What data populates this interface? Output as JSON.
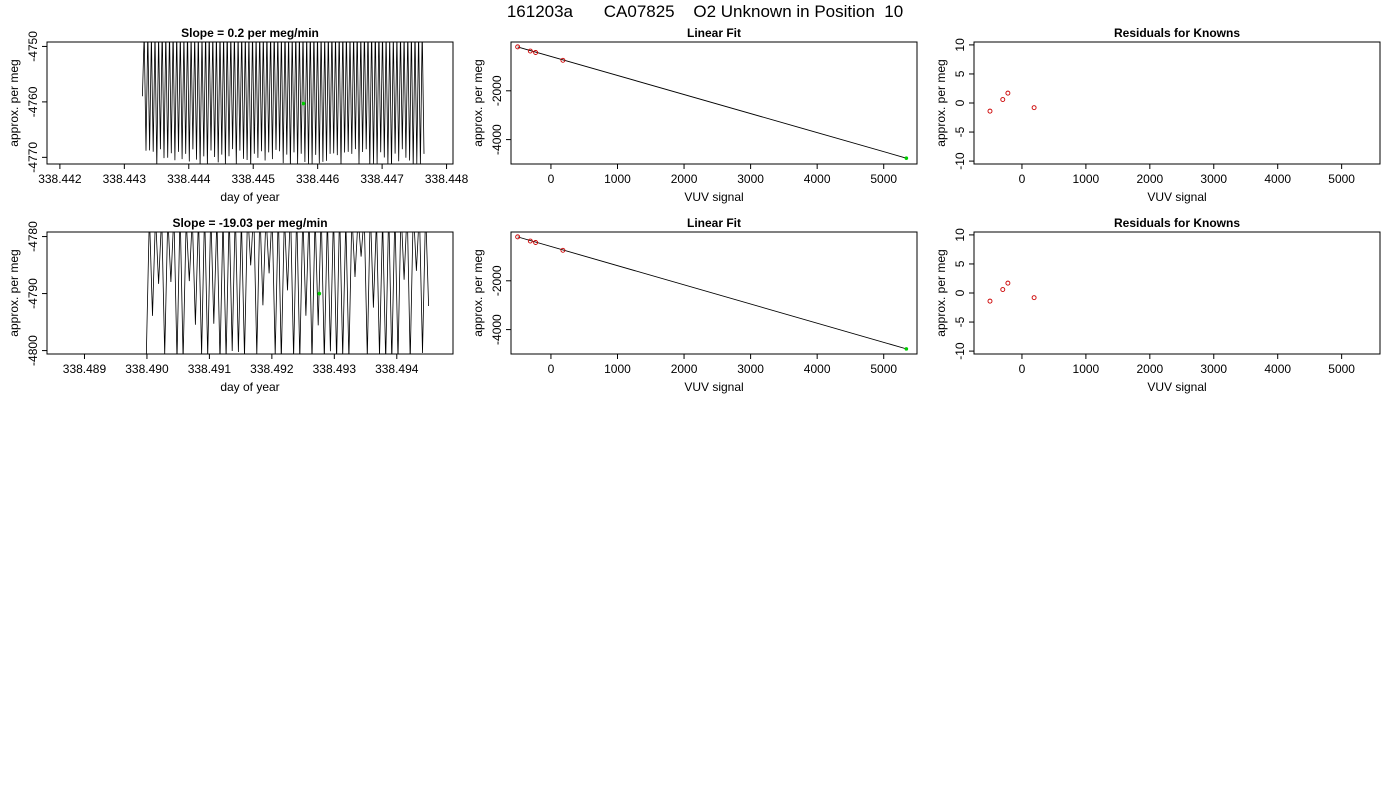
{
  "header": {
    "run_id": "161203a",
    "cylinder": "CA07825",
    "description": "O2 Unknown in Position  10"
  },
  "colors": {
    "line": "#000000",
    "known": "#cc0000",
    "unknown": "#00cc00",
    "frame": "#000000"
  },
  "chart_data": [
    {
      "id": "ts1",
      "type": "line",
      "title": "Slope =  0.2  per meg/min",
      "xlabel": "day of year",
      "ylabel": "approx. per meg",
      "xlim": [
        338.4418,
        338.4481
      ],
      "ylim": [
        -4771.2,
        -4749.2
      ],
      "xticks": [
        338.442,
        338.443,
        338.444,
        338.445,
        338.446,
        338.447,
        338.448
      ],
      "xtick_labels": [
        "338.442",
        "338.443",
        "338.444",
        "338.445",
        "338.446",
        "338.447",
        "338.448"
      ],
      "yticks": [
        -4750,
        -4760,
        -4770
      ],
      "ytick_labels": [
        "-4750",
        "-4760",
        "-4770"
      ],
      "signal": {
        "kind": "oscillation",
        "x_start": 338.44328,
        "x_end": 338.44765,
        "cycles": 78,
        "seed": 7,
        "y_low": -4772,
        "y_high": -4748,
        "first_y": -4759
      },
      "marker": {
        "x": 338.44578,
        "y": -4760.3
      }
    },
    {
      "id": "fit1",
      "type": "scatter",
      "title": "Linear Fit",
      "xlabel": "VUV signal",
      "ylabel": "approx. per meg",
      "xlim": [
        -600,
        5500
      ],
      "ylim": [
        -5000,
        0
      ],
      "xticks": [
        0,
        1000,
        2000,
        3000,
        4000,
        5000
      ],
      "xtick_labels": [
        "0",
        "1000",
        "2000",
        "3000",
        "4000",
        "5000"
      ],
      "yticks": [
        -2000,
        -4000
      ],
      "ytick_labels": [
        "-2000",
        "-4000"
      ],
      "fit_line": [
        [
          -500,
          -200
        ],
        [
          5340,
          -4760
        ]
      ],
      "knowns": [
        [
          -500,
          -200
        ],
        [
          -310,
          -370
        ],
        [
          -230,
          -430
        ],
        [
          180,
          -750
        ]
      ],
      "unknown": [
        5340,
        -4760
      ]
    },
    {
      "id": "res1",
      "type": "scatter",
      "title": "Residuals for Knowns",
      "xlabel": "VUV signal",
      "ylabel": "approx. per meg",
      "xlim": [
        -750,
        5600
      ],
      "ylim": [
        -10.5,
        10.5
      ],
      "xticks": [
        0,
        1000,
        2000,
        3000,
        4000,
        5000
      ],
      "xtick_labels": [
        "0",
        "1000",
        "2000",
        "3000",
        "4000",
        "5000"
      ],
      "yticks": [
        10,
        5,
        0,
        -5,
        -10
      ],
      "ytick_labels": [
        "10",
        "5",
        "0",
        "-5",
        "-10"
      ],
      "points": [
        [
          -500,
          -1.4
        ],
        [
          -300,
          0.6
        ],
        [
          -220,
          1.7
        ],
        [
          190,
          -0.8
        ]
      ]
    },
    {
      "id": "ts2",
      "type": "line",
      "title": "Slope =  -19.03  per meg/min",
      "xlabel": "day of year",
      "ylabel": "approx. per meg",
      "xlim": [
        338.4884,
        338.4949
      ],
      "ylim": [
        -4800.6,
        -4779.2
      ],
      "xticks": [
        338.489,
        338.49,
        338.491,
        338.492,
        338.493,
        338.494
      ],
      "xtick_labels": [
        "338.489",
        "338.490",
        "338.491",
        "338.492",
        "338.493",
        "338.494"
      ],
      "yticks": [
        -4780,
        -4790,
        -4800
      ],
      "ytick_labels": [
        "-4780",
        "-4790",
        "-4800"
      ],
      "signal": {
        "kind": "spikes",
        "x_start": 338.48999,
        "x_end": 338.49451,
        "cycles": 46,
        "seed": 13,
        "y_low": -4802,
        "y_high": -4777,
        "first_y": -4801
      },
      "marker": {
        "x": 338.49276,
        "y": -4790
      }
    },
    {
      "id": "fit2",
      "type": "scatter",
      "title": "Linear Fit",
      "xlabel": "VUV signal",
      "ylabel": "approx. per meg",
      "xlim": [
        -600,
        5500
      ],
      "ylim": [
        -5000,
        0
      ],
      "xticks": [
        0,
        1000,
        2000,
        3000,
        4000,
        5000
      ],
      "xtick_labels": [
        "0",
        "1000",
        "2000",
        "3000",
        "4000",
        "5000"
      ],
      "yticks": [
        -2000,
        -4000
      ],
      "ytick_labels": [
        "-2000",
        "-4000"
      ],
      "fit_line": [
        [
          -500,
          -200
        ],
        [
          5340,
          -4790
        ]
      ],
      "knowns": [
        [
          -500,
          -200
        ],
        [
          -310,
          -370
        ],
        [
          -230,
          -430
        ],
        [
          180,
          -750
        ]
      ],
      "unknown": [
        5340,
        -4790
      ]
    },
    {
      "id": "res2",
      "type": "scatter",
      "title": "Residuals for Knowns",
      "xlabel": "VUV signal",
      "ylabel": "approx. per meg",
      "xlim": [
        -750,
        5600
      ],
      "ylim": [
        -10.5,
        10.5
      ],
      "xticks": [
        0,
        1000,
        2000,
        3000,
        4000,
        5000
      ],
      "xtick_labels": [
        "0",
        "1000",
        "2000",
        "3000",
        "4000",
        "5000"
      ],
      "yticks": [
        10,
        5,
        0,
        -5,
        -10
      ],
      "ytick_labels": [
        "10",
        "5",
        "0",
        "-5",
        "-10"
      ],
      "points": [
        [
          -500,
          -1.4
        ],
        [
          -300,
          0.6
        ],
        [
          -220,
          1.7
        ],
        [
          190,
          -0.8
        ]
      ]
    }
  ]
}
